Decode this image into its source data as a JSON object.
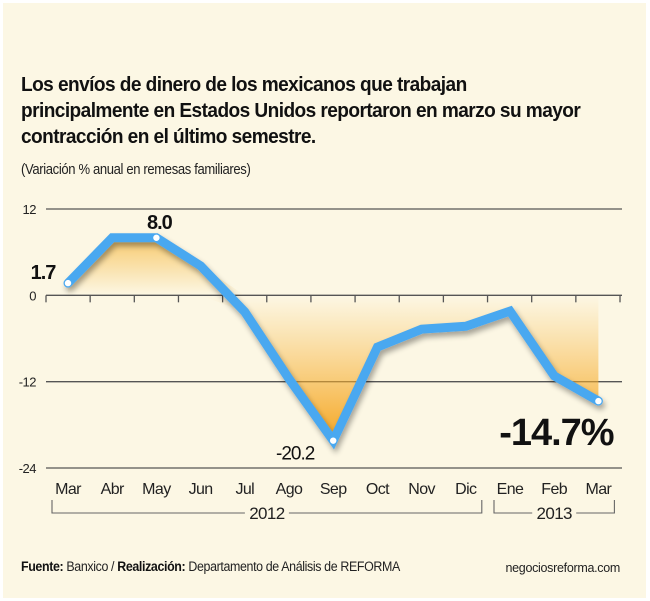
{
  "chart_data": {
    "type": "line",
    "title": "Los envíos de dinero de los mexicanos que trabajan principalmente en Estados Unidos reportaron en marzo su mayor contracción en el último semestre.",
    "subtitle": "(Variación % anual en remesas familiares)",
    "xlabel": "",
    "ylabel": "",
    "ylim": [
      -24,
      12
    ],
    "yticks": [
      12,
      0,
      -12,
      -24
    ],
    "ytick_labels": [
      "12",
      "0",
      "-12",
      "-24"
    ],
    "grid": true,
    "categories": [
      "Mar",
      "Abr",
      "May",
      "Jun",
      "Jul",
      "Ago",
      "Sep",
      "Oct",
      "Nov",
      "Dic",
      "Ene",
      "Feb",
      "Mar"
    ],
    "year_groups": [
      {
        "label": "2012",
        "from": 0,
        "to": 9
      },
      {
        "label": "2013",
        "from": 10,
        "to": 12
      }
    ],
    "series": [
      {
        "name": "Variación % anual",
        "color": "#4aa8f0",
        "values": [
          1.7,
          8.0,
          8.0,
          4.1,
          -2.3,
          -11.6,
          -20.2,
          -7.2,
          -4.7,
          -4.3,
          -2.2,
          -11.2,
          -14.7
        ]
      }
    ],
    "annotations": [
      {
        "index": 0,
        "text": "1.7"
      },
      {
        "index": 2,
        "text": "8.0"
      },
      {
        "index": 6,
        "text": "-20.2"
      },
      {
        "index": 12,
        "text": "-14.7%"
      }
    ],
    "fill_color": "#f7b53a"
  },
  "footer": {
    "source_label": "Fuente:",
    "source_value": "Banxico /",
    "credit_label": "Realización:",
    "credit_value": "Departamento de Análisis de REFORMA",
    "website": "negociosreforma.com"
  }
}
